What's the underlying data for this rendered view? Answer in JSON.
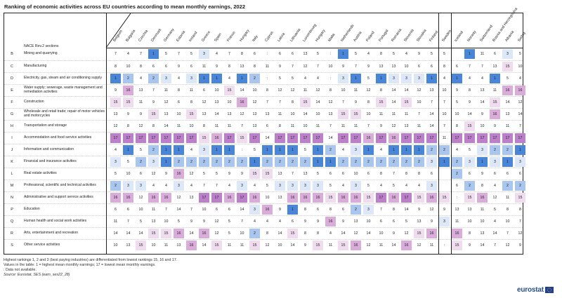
{
  "title": "Ranking of economic activities across EU countries according to mean monthly earnings, 2022",
  "row_header": "NACE Rev.2 sections",
  "countries": [
    "Belgium",
    "Bulgaria",
    "Czechia",
    "Denmark",
    "Germany",
    "Estonia",
    "Ireland",
    "Greece",
    "Spain",
    "France",
    "Hungary",
    "Italy",
    "Cyprus",
    "Latvia",
    "Lithuania",
    "Luxembourg",
    "Hungary",
    "Malta",
    "Netherlands",
    "Austria",
    "Poland",
    "Portugal",
    "Romania",
    "Slovenia",
    "Slovakia",
    "Finland",
    "Sweden",
    "Iceland",
    "Norway",
    "Switzerland",
    "Bosnia and Herzegovina",
    "Albania",
    "Serbia"
  ],
  "colors": {
    "top1": "#4a86d8",
    "top2": "#a9c6ee",
    "top3": "#dce7f7",
    "low15": "#efdcef",
    "low16": "#d9acd9",
    "low17": "#bb80c9",
    "na": "#ffffff",
    "border": "#222222"
  },
  "rows": [
    {
      "code": "B",
      "label": "Mining and quarrying",
      "values": [
        "7",
        "4",
        "7",
        "1",
        "5",
        "7",
        "5",
        "3",
        "4",
        "7",
        "8",
        "6",
        ":",
        "6",
        "6",
        "13",
        "5",
        ":",
        "1",
        "5",
        "4",
        "8",
        "5",
        "4",
        "9",
        "5",
        "5",
        "",
        "1",
        "11",
        "6",
        "3",
        "5"
      ]
    },
    {
      "code": "C",
      "label": "Manufacturing",
      "values": [
        "8",
        "10",
        "8",
        "6",
        "6",
        "9",
        "6",
        "11",
        "9",
        "8",
        "13",
        "8",
        "11",
        "9",
        "7",
        "12",
        "7",
        "10",
        "9",
        "7",
        "9",
        "13",
        "13",
        "10",
        "6",
        "6",
        "8",
        "6",
        "7",
        "7",
        "13",
        "15",
        "10"
      ]
    },
    {
      "code": "D",
      "label": "Electricity, gas, steam and air conditioning supply",
      "values": [
        "1",
        "2",
        "4",
        "2",
        "3",
        "4",
        "3",
        "1",
        "1",
        "4",
        "1",
        "2",
        ":",
        "5",
        "5",
        "4",
        "4",
        ":",
        "3",
        "1",
        "5",
        "1",
        "3",
        "3",
        "3",
        "1",
        "4",
        "1",
        "4",
        "4",
        "1",
        "5",
        "4"
      ]
    },
    {
      "code": "E",
      "label": "Water supply; sewerage, waste management and remediation activities",
      "values": [
        "9",
        "16",
        "13",
        "7",
        "11",
        "8",
        "11",
        "6",
        "10",
        "15",
        "14",
        "10",
        "8",
        "12",
        "12",
        "11",
        "12",
        "8",
        "10",
        "11",
        "12",
        "8",
        "14",
        "14",
        "12",
        "13",
        "10",
        "9",
        "8",
        "13",
        "11",
        "16",
        "16"
      ]
    },
    {
      "code": "F",
      "label": "Construction",
      "values": [
        "15",
        "15",
        "11",
        "9",
        "12",
        "6",
        "8",
        "12",
        "13",
        "10",
        "16",
        "12",
        "7",
        "7",
        "8",
        "15",
        "14",
        "12",
        "7",
        "9",
        "8",
        "15",
        "14",
        "15",
        "10",
        "7",
        "7",
        "5",
        "9",
        "14",
        "15",
        "14",
        "12"
      ]
    },
    {
      "code": "G",
      "label": "Wholesale and retail trade; repair of motor vehicles and motorcycles",
      "values": [
        "13",
        "9",
        "9",
        "15",
        "13",
        "10",
        "15",
        "13",
        "14",
        "13",
        "12",
        "13",
        "13",
        "11",
        "10",
        "14",
        "10",
        "13",
        "15",
        "15",
        "10",
        "11",
        "11",
        "11",
        "7",
        "14",
        "10",
        "10",
        "14",
        "9",
        "16",
        "13",
        "14"
      ]
    },
    {
      "code": "H",
      "label": "Transportation and storage",
      "values": [
        "12",
        "8",
        "12",
        "8",
        "14",
        "11",
        "10",
        "8",
        "11",
        "11",
        "7",
        "13",
        "6",
        "8",
        "11",
        "10",
        "11",
        "7",
        "11",
        "11",
        "7",
        "9",
        "12",
        "13",
        "11",
        "14",
        "7",
        "8",
        "15",
        "10",
        "9",
        "11",
        "7"
      ]
    },
    {
      "code": "I",
      "label": "Accommodation and food service activities",
      "values": [
        "17",
        "17",
        "17",
        "17",
        "17",
        "17",
        "17",
        "15",
        "16",
        "17",
        "15",
        "17",
        "14",
        "17",
        "17",
        "17",
        "17",
        "14",
        "17",
        "17",
        "16",
        "17",
        "16",
        "17",
        "17",
        "17",
        "11",
        "17",
        "17",
        "17",
        "17",
        "17",
        "17"
      ]
    },
    {
      "code": "J",
      "label": "Information and communication",
      "values": [
        "4",
        "1",
        "5",
        "2",
        "1",
        "1",
        "4",
        "3",
        "1",
        "1",
        ":",
        "5",
        "1",
        "1",
        "1",
        "5",
        "1",
        "2",
        "4",
        "3",
        "1",
        "4",
        "1",
        "1",
        "1",
        "2",
        "2",
        "4",
        "5",
        "3",
        "2",
        "2",
        "1"
      ]
    },
    {
      "code": "K",
      "label": "Financial and insurance activities",
      "values": [
        "3",
        "5",
        "2",
        "3",
        "1",
        "2",
        "2",
        "2",
        "2",
        "2",
        "2",
        "1",
        "2",
        "2",
        "2",
        "2",
        "1",
        "1",
        "2",
        "2",
        "2",
        "2",
        "2",
        "2",
        "2",
        "3",
        "1",
        "2",
        "3",
        "1",
        "3",
        "1",
        "3"
      ]
    },
    {
      "code": "L",
      "label": "Real estate activities",
      "values": [
        "5",
        "10",
        "6",
        "12",
        "9",
        "16",
        "12",
        "5",
        "5",
        "9",
        "9",
        "15",
        "15",
        "13",
        "7",
        "13",
        "5",
        "6",
        "6",
        "10",
        "6",
        "8",
        "7",
        "8",
        "8",
        "6",
        "",
        "2",
        "6",
        "9",
        "6",
        "6",
        "6"
      ]
    },
    {
      "code": "M",
      "label": "Professional, scientific and technical activities",
      "values": [
        "2",
        "3",
        "3",
        "4",
        "4",
        "3",
        "4",
        "7",
        "7",
        "4",
        "3",
        "4",
        "5",
        "3",
        "3",
        "3",
        "3",
        "5",
        "4",
        "3",
        "5",
        "4",
        "5",
        "4",
        "4",
        "3",
        "",
        "6",
        "2",
        "8",
        "4",
        "2",
        "2"
      ]
    },
    {
      "code": "N",
      "label": "Administrative and support service activities",
      "values": [
        "16",
        "16",
        "12",
        "16",
        "16",
        "12",
        "13",
        "17",
        "17",
        "16",
        "17",
        "16",
        "10",
        "13",
        "16",
        "16",
        "16",
        "15",
        "16",
        "16",
        "15",
        "17",
        "16",
        "17",
        "15",
        "16",
        "15",
        ":",
        "15",
        "16",
        "12",
        "11",
        "15"
      ]
    },
    {
      "code": "P",
      "label": "Education",
      "values": [
        "6",
        "6",
        "10",
        "11",
        "7",
        "14",
        "7",
        "10",
        "6",
        "6",
        "14",
        "3",
        "16",
        "9",
        "1",
        "8",
        "6",
        "8",
        "6",
        "2",
        "3",
        "7",
        "8",
        "14",
        "9",
        "12",
        "9",
        "13",
        "13",
        "11",
        "5",
        "8",
        "8"
      ]
    },
    {
      "code": "Q",
      "label": "Human health and social work activities",
      "values": [
        "11",
        "7",
        "5",
        "13",
        "10",
        "5",
        "9",
        "9",
        "12",
        "5",
        "7",
        "4",
        "4",
        "4",
        "6",
        "9",
        "9",
        "16",
        "9",
        "13",
        "10",
        "6",
        "6",
        "5",
        "13",
        "9",
        "3",
        "11",
        "10",
        "10",
        "4",
        "10",
        "7"
      ]
    },
    {
      "code": "R",
      "label": "Arts, entertainment and recreation",
      "values": [
        "14",
        "14",
        "14",
        "15",
        "15",
        "16",
        "14",
        "16",
        "12",
        "5",
        "10",
        "2",
        "8",
        "14",
        "15",
        "8",
        "8",
        "4",
        "14",
        "12",
        "14",
        "10",
        "9",
        "12",
        "15",
        "16",
        "",
        "16",
        "8",
        "13",
        "14",
        "7",
        "12"
      ]
    },
    {
      "code": "S",
      "label": "Other service activities",
      "values": [
        "10",
        "13",
        "15",
        "10",
        "11",
        "13",
        "16",
        "14",
        "15",
        "11",
        "11",
        "15",
        "12",
        "10",
        "14",
        "9",
        "15",
        "11",
        "15",
        "16",
        "12",
        "11",
        "14",
        "16",
        "12",
        "11",
        ":",
        "15",
        "9",
        "14",
        "7",
        "12",
        "9"
      ]
    }
  ],
  "notes": [
    "Highest rankings 1, 2 and 3 (best paying industries) are differentiated from lowest rankings 15, 16 and 17.",
    "Values in the table: 1 = highest mean monthly earnings; 17 = lowest mean monthly earnings.",
    ": Data not available."
  ],
  "source": "Source:  Eurostat, SES (earn_ses22_28)",
  "logo": "eurostat"
}
